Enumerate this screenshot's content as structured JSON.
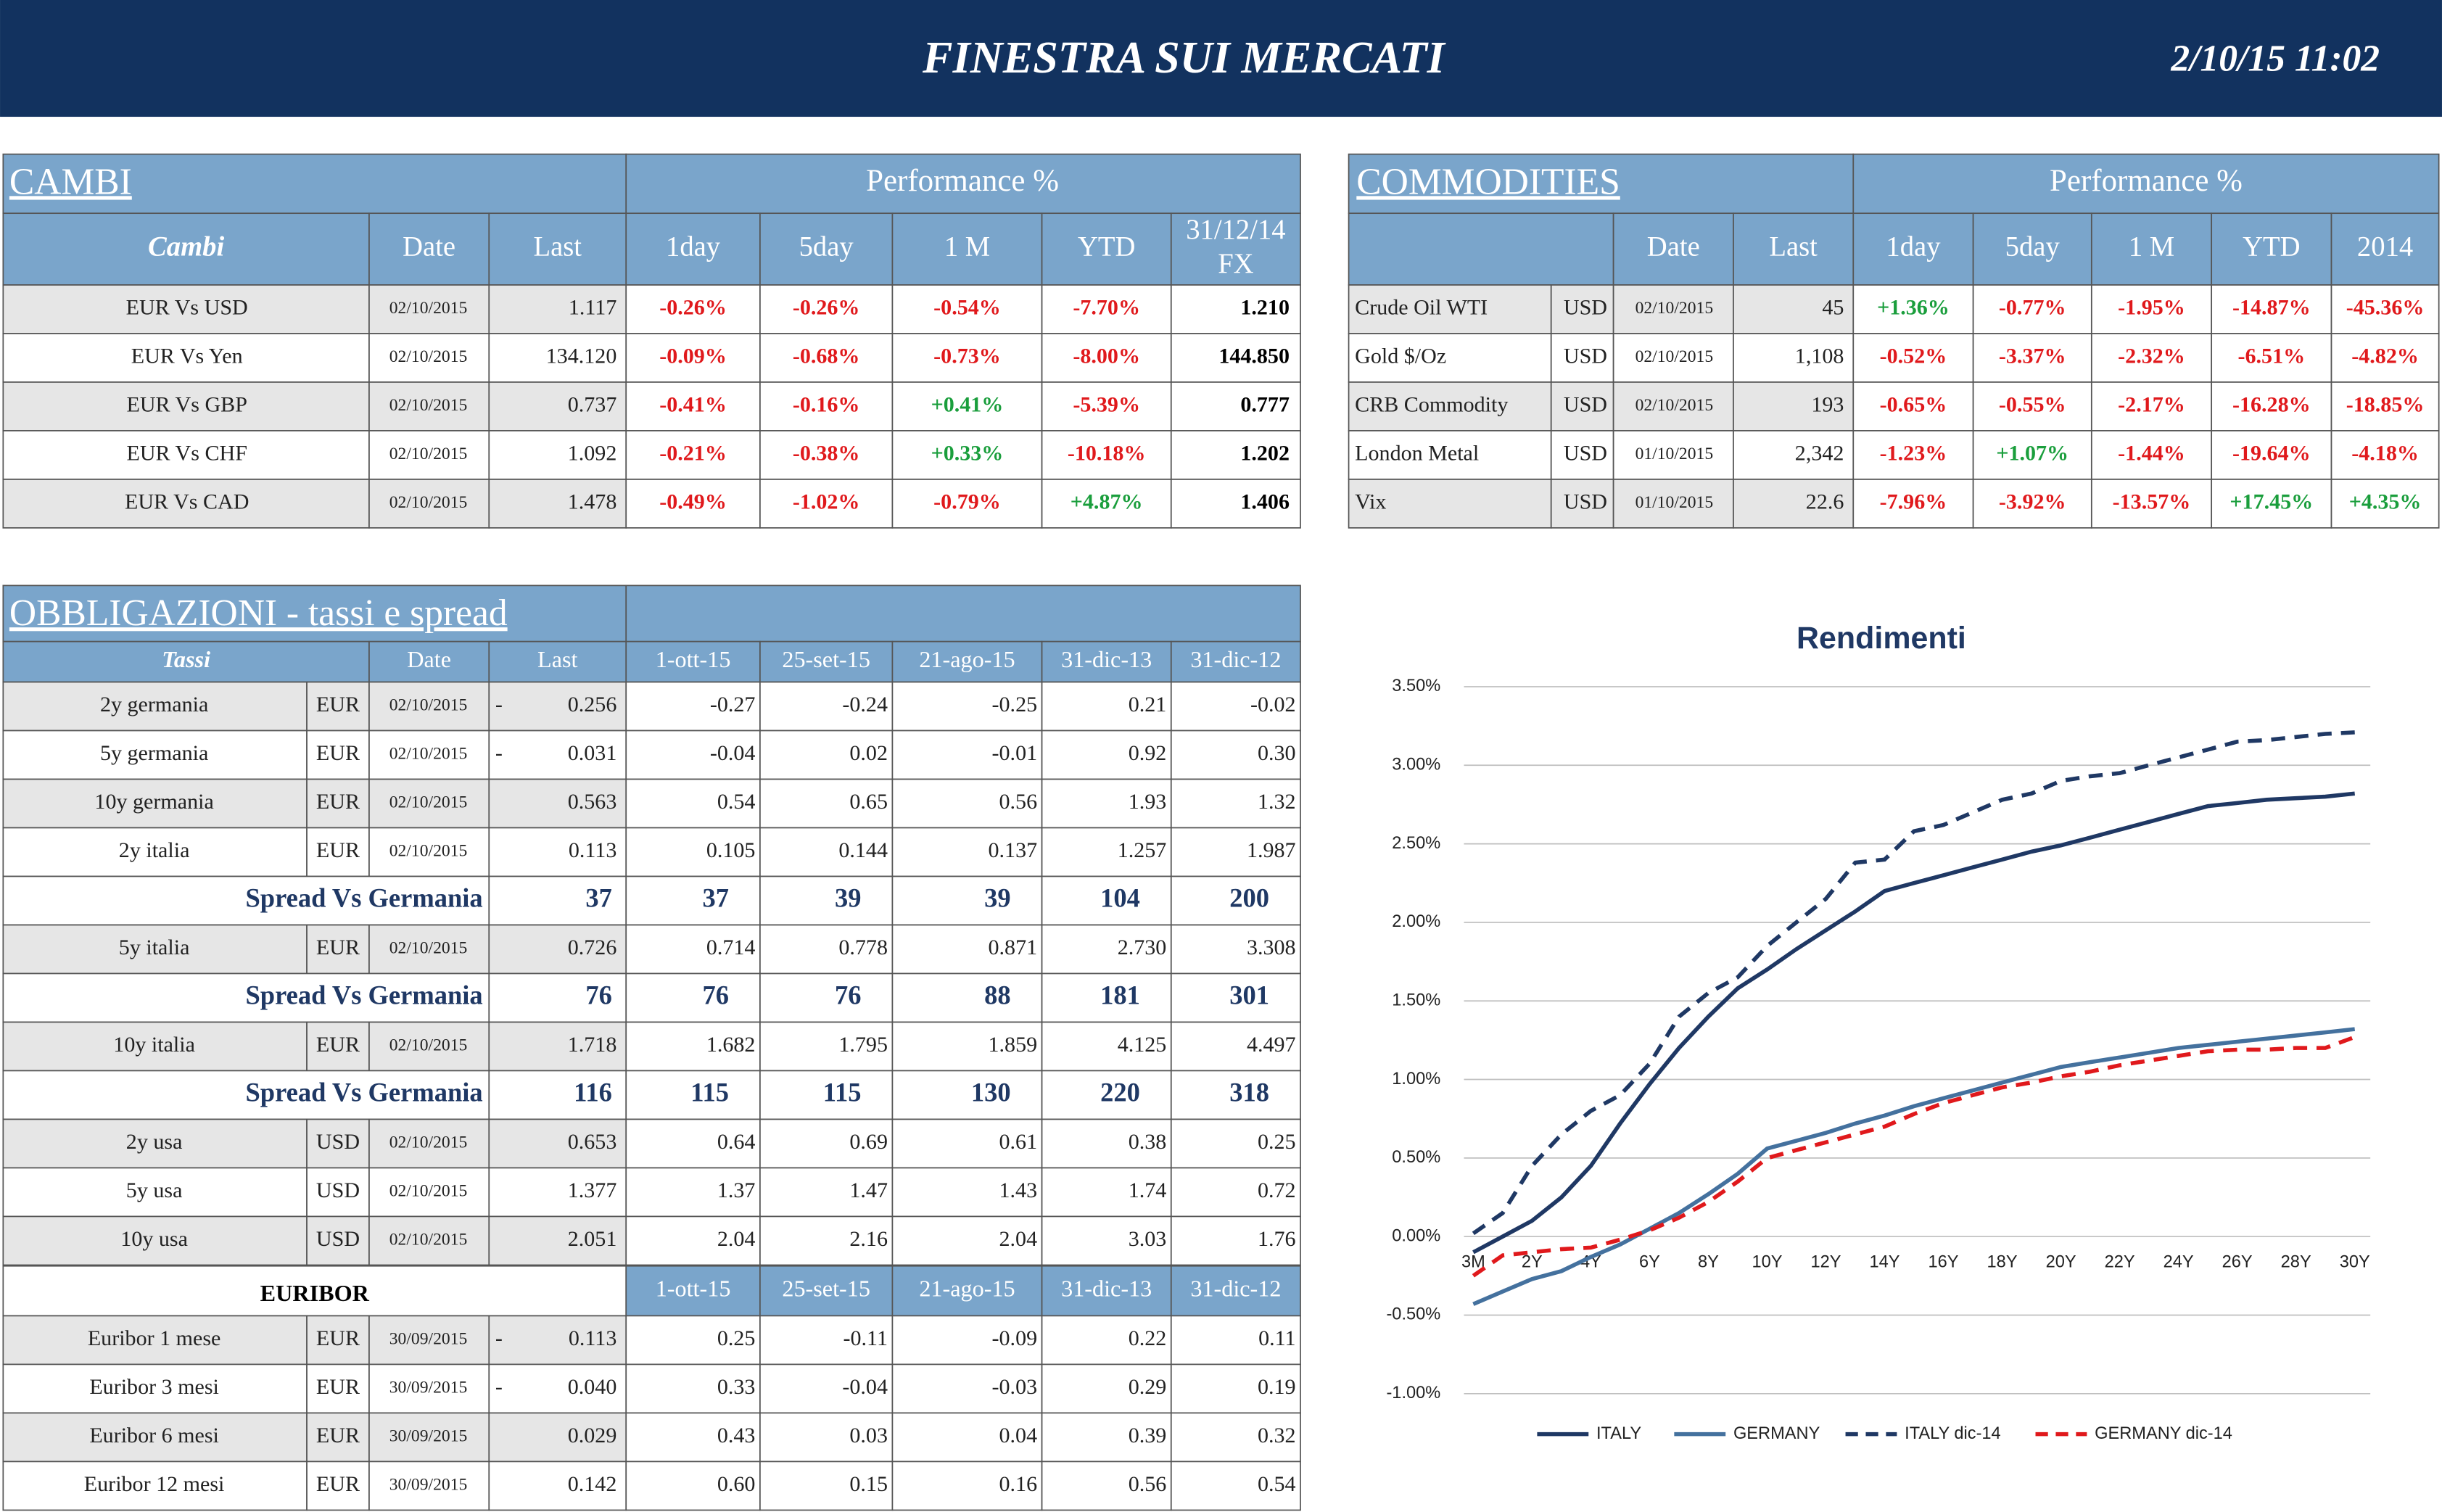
{
  "header": {
    "title": "FINESTRA SUI MERCATI",
    "datetime": "2/10/15 11:02"
  },
  "cambi": {
    "title": "CAMBI",
    "performance_label": "Performance  %",
    "columns": [
      "Cambi",
      "Date",
      "Last",
      "1day",
      "5day",
      "1 M",
      "YTD",
      "31/12/14 FX"
    ],
    "rows": [
      {
        "name": "EUR Vs USD",
        "date": "02/10/2015",
        "last": "1.117",
        "perf": [
          "-0.26%",
          "-0.26%",
          "-0.54%",
          "-7.70%"
        ],
        "fx": "1.210"
      },
      {
        "name": "EUR Vs Yen",
        "date": "02/10/2015",
        "last": "134.120",
        "perf": [
          "-0.09%",
          "-0.68%",
          "-0.73%",
          "-8.00%"
        ],
        "fx": "144.850"
      },
      {
        "name": "EUR Vs GBP",
        "date": "02/10/2015",
        "last": "0.737",
        "perf": [
          "-0.41%",
          "-0.16%",
          "+0.41%",
          "-5.39%"
        ],
        "fx": "0.777"
      },
      {
        "name": "EUR Vs CHF",
        "date": "02/10/2015",
        "last": "1.092",
        "perf": [
          "-0.21%",
          "-0.38%",
          "+0.33%",
          "-10.18%"
        ],
        "fx": "1.202"
      },
      {
        "name": "EUR Vs CAD",
        "date": "02/10/2015",
        "last": "1.478",
        "perf": [
          "-0.49%",
          "-1.02%",
          "-0.79%",
          "+4.87%"
        ],
        "fx": "1.406"
      }
    ]
  },
  "commodities": {
    "title": "COMMODITIES",
    "performance_label": "Performance  %",
    "columns": [
      "Date",
      "Last",
      "1day",
      "5day",
      "1 M",
      "YTD",
      "2014"
    ],
    "rows": [
      {
        "name": "Crude Oil WTI",
        "currency": "USD",
        "date": "02/10/2015",
        "last": "45",
        "perf": [
          "+1.36%",
          "-0.77%",
          "-1.95%",
          "-14.87%",
          "-45.36%"
        ]
      },
      {
        "name": "Gold $/Oz",
        "currency": "USD",
        "date": "02/10/2015",
        "last": "1,108",
        "perf": [
          "-0.52%",
          "-3.37%",
          "-2.32%",
          "-6.51%",
          "-4.82%"
        ]
      },
      {
        "name": "CRB Commodity",
        "currency": "USD",
        "date": "02/10/2015",
        "last": "193",
        "perf": [
          "-0.65%",
          "-0.55%",
          "-2.17%",
          "-16.28%",
          "-18.85%"
        ]
      },
      {
        "name": "London Metal",
        "currency": "USD",
        "date": "01/10/2015",
        "last": "2,342",
        "perf": [
          "-1.23%",
          "+1.07%",
          "-1.44%",
          "-19.64%",
          "-4.18%"
        ]
      },
      {
        "name": "Vix",
        "currency": "USD",
        "date": "01/10/2015",
        "last": "22.6",
        "perf": [
          "-7.96%",
          "-3.92%",
          "-13.57%",
          "+17.45%",
          "+4.35%"
        ]
      }
    ]
  },
  "bonds": {
    "title": "OBBLIGAZIONI - tassi e spread",
    "columns": [
      "Tassi",
      "Date",
      "Last",
      "1-ott-15",
      "25-set-15",
      "21-ago-15",
      "31-dic-13",
      "31-dic-12"
    ],
    "rows": [
      {
        "name": "2y germania",
        "currency": "EUR",
        "date": "02/10/2015",
        "sign": "-",
        "last": "0.256",
        "values": [
          "-0.27",
          "-0.24",
          "-0.25",
          "0.21",
          "-0.02"
        ]
      },
      {
        "name": "5y germania",
        "currency": "EUR",
        "date": "02/10/2015",
        "sign": "-",
        "last": "0.031",
        "values": [
          "-0.04",
          "0.02",
          "-0.01",
          "0.92",
          "0.30"
        ]
      },
      {
        "name": "10y germania",
        "currency": "EUR",
        "date": "02/10/2015",
        "last": "0.563",
        "values": [
          "0.54",
          "0.65",
          "0.56",
          "1.93",
          "1.32"
        ]
      },
      {
        "name": "2y italia",
        "currency": "EUR",
        "date": "02/10/2015",
        "last": "0.113",
        "values": [
          "0.105",
          "0.144",
          "0.137",
          "1.257",
          "1.987"
        ]
      },
      {
        "label": "Spread Vs Germania",
        "last": "37",
        "values": [
          "37",
          "39",
          "39",
          "104",
          "200"
        ]
      },
      {
        "name": "5y italia",
        "currency": "EUR",
        "date": "02/10/2015",
        "last": "0.726",
        "values": [
          "0.714",
          "0.778",
          "0.871",
          "2.730",
          "3.308"
        ]
      },
      {
        "label": "Spread Vs Germania",
        "last": "76",
        "values": [
          "76",
          "76",
          "88",
          "181",
          "301"
        ]
      },
      {
        "name": "10y italia",
        "currency": "EUR",
        "date": "02/10/2015",
        "last": "1.718",
        "values": [
          "1.682",
          "1.795",
          "1.859",
          "4.125",
          "4.497"
        ]
      },
      {
        "label": "Spread Vs Germania",
        "last": "116",
        "values": [
          "115",
          "115",
          "130",
          "220",
          "318"
        ]
      },
      {
        "name": "2y usa",
        "currency": "USD",
        "date": "02/10/2015",
        "last": "0.653",
        "values": [
          "0.64",
          "0.69",
          "0.61",
          "0.38",
          "0.25"
        ]
      },
      {
        "name": "5y usa",
        "currency": "USD",
        "date": "02/10/2015",
        "last": "1.377",
        "values": [
          "1.37",
          "1.47",
          "1.43",
          "1.74",
          "0.72"
        ]
      },
      {
        "name": "10y usa",
        "currency": "USD",
        "date": "02/10/2015",
        "last": "2.051",
        "values": [
          "2.04",
          "2.16",
          "2.04",
          "3.03",
          "1.76"
        ]
      }
    ]
  },
  "euribor": {
    "title": "EURIBOR",
    "columns": [
      "1-ott-15",
      "25-set-15",
      "21-ago-15",
      "31-dic-13",
      "31-dic-12"
    ],
    "rows": [
      {
        "name": "Euribor 1 mese",
        "currency": "EUR",
        "date": "30/09/2015",
        "sign": "-",
        "last": "0.113",
        "values": [
          "0.25",
          "-0.11",
          "-0.09",
          "0.22",
          "0.11"
        ]
      },
      {
        "name": "Euribor 3 mesi",
        "currency": "EUR",
        "date": "30/09/2015",
        "sign": "-",
        "last": "0.040",
        "values": [
          "0.33",
          "-0.04",
          "-0.03",
          "0.29",
          "0.19"
        ]
      },
      {
        "name": "Euribor 6 mesi",
        "currency": "EUR",
        "date": "30/09/2015",
        "last": "0.029",
        "values": [
          "0.43",
          "0.03",
          "0.04",
          "0.39",
          "0.32"
        ]
      },
      {
        "name": "Euribor 12 mesi",
        "currency": "EUR",
        "date": "30/09/2015",
        "last": "0.142",
        "values": [
          "0.60",
          "0.15",
          "0.16",
          "0.56",
          "0.54"
        ]
      }
    ]
  },
  "chart_data": {
    "type": "line",
    "title": "Rendimenti",
    "categories": [
      "3M",
      null,
      "2Y",
      null,
      "4Y",
      null,
      "6Y",
      null,
      "8Y",
      null,
      "10Y",
      null,
      "12Y",
      null,
      "14Y",
      null,
      "16Y",
      null,
      "18Y",
      null,
      "20Y",
      null,
      "22Y",
      null,
      "24Y",
      null,
      "26Y",
      null,
      "28Y",
      null,
      "30Y"
    ],
    "ylim": [
      -1,
      3.5
    ],
    "yticks": [
      {
        "value": -1,
        "label": "-1.00%"
      },
      {
        "value": -0.5,
        "label": "-0.50%"
      },
      {
        "value": 0,
        "label": "0.00%"
      },
      {
        "value": 0.5,
        "label": "0.50%"
      },
      {
        "value": 1,
        "label": "1.00%"
      },
      {
        "value": 1.5,
        "label": "1.50%"
      },
      {
        "value": 2,
        "label": "2.00%"
      },
      {
        "value": 2.5,
        "label": "2.50%"
      },
      {
        "value": 3,
        "label": "3.00%"
      },
      {
        "value": 3.5,
        "label": "3.50%"
      }
    ],
    "grid": true,
    "series": [
      {
        "name": "ITALY",
        "color": "#1f3864",
        "dashed": false,
        "values": [
          -0.1,
          0,
          0.1,
          0.25,
          0.45,
          0.72,
          0.97,
          1.2,
          1.4,
          1.58,
          1.7,
          1.83,
          1.95,
          2.07,
          2.2,
          2.25,
          2.3,
          2.35,
          2.4,
          2.45,
          2.49,
          2.54,
          2.59,
          2.64,
          2.69,
          2.74,
          2.76,
          2.78,
          2.79,
          2.8,
          2.82
        ]
      },
      {
        "name": "GERMANY",
        "color": "#44719e",
        "dashed": false,
        "values": [
          -0.43,
          -0.35,
          -0.27,
          -0.22,
          -0.13,
          -0.05,
          0.05,
          0.15,
          0.27,
          0.4,
          0.56,
          0.61,
          0.66,
          0.72,
          0.77,
          0.83,
          0.88,
          0.93,
          0.98,
          1.03,
          1.08,
          1.11,
          1.14,
          1.17,
          1.2,
          1.22,
          1.24,
          1.26,
          1.28,
          1.3,
          1.32
        ]
      },
      {
        "name": "ITALY dic-14",
        "color": "#1f3864",
        "dashed": true,
        "values": [
          0.02,
          0.15,
          0.45,
          0.65,
          0.8,
          0.9,
          1.1,
          1.4,
          1.55,
          1.65,
          1.85,
          2,
          2.15,
          2.38,
          2.4,
          2.58,
          2.62,
          2.7,
          2.78,
          2.82,
          2.9,
          2.93,
          2.95,
          3,
          3.05,
          3.1,
          3.15,
          3.16,
          3.18,
          3.2,
          3.21
        ]
      },
      {
        "name": "GERMANY dic-14",
        "color": "#e0191c",
        "dashed": true,
        "values": [
          -0.25,
          -0.12,
          -0.1,
          -0.08,
          -0.07,
          -0.02,
          0.04,
          0.12,
          0.22,
          0.35,
          0.5,
          0.55,
          0.6,
          0.65,
          0.7,
          0.78,
          0.85,
          0.9,
          0.95,
          0.98,
          1.02,
          1.05,
          1.09,
          1.12,
          1.15,
          1.18,
          1.19,
          1.19,
          1.2,
          1.2,
          1.27
        ]
      }
    ]
  }
}
